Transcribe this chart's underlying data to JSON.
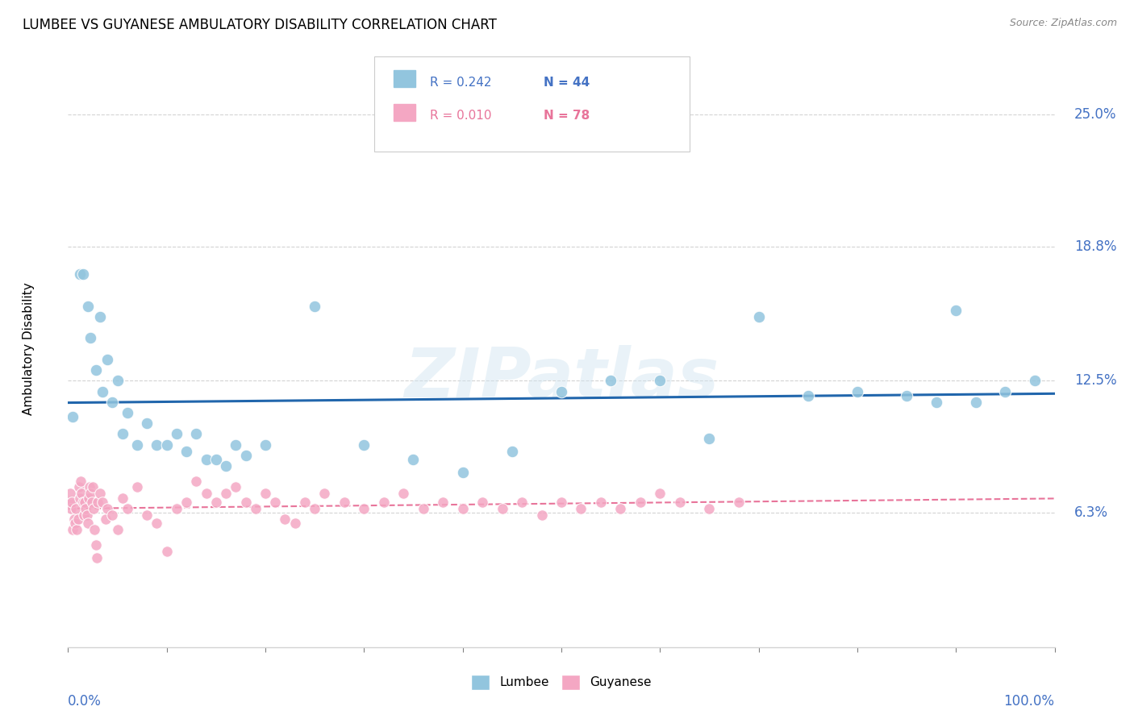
{
  "title": "LUMBEE VS GUYANESE AMBULATORY DISABILITY CORRELATION CHART",
  "source": "Source: ZipAtlas.com",
  "ylabel": "Ambulatory Disability",
  "yticks": [
    0.063,
    0.125,
    0.188,
    0.25
  ],
  "ytick_labels": [
    "6.3%",
    "12.5%",
    "18.8%",
    "25.0%"
  ],
  "lumbee_R": 0.242,
  "lumbee_N": 44,
  "guyanese_R": 0.01,
  "guyanese_N": 78,
  "lumbee_color": "#92c5de",
  "guyanese_color": "#f4a7c3",
  "lumbee_line_color": "#2166ac",
  "guyanese_line_color": "#e8749a",
  "watermark": "ZIPatlas",
  "lumbee_x": [
    0.5,
    1.2,
    1.5,
    2.0,
    2.3,
    2.8,
    3.2,
    3.5,
    4.0,
    4.5,
    5.0,
    5.5,
    6.0,
    7.0,
    8.0,
    9.0,
    10.0,
    11.0,
    12.0,
    13.0,
    14.0,
    15.0,
    16.0,
    17.0,
    18.0,
    20.0,
    25.0,
    30.0,
    35.0,
    40.0,
    45.0,
    50.0,
    55.0,
    60.0,
    65.0,
    70.0,
    75.0,
    80.0,
    85.0,
    88.0,
    90.0,
    92.0,
    95.0,
    98.0
  ],
  "lumbee_y": [
    0.108,
    0.175,
    0.175,
    0.16,
    0.145,
    0.13,
    0.155,
    0.12,
    0.135,
    0.115,
    0.125,
    0.1,
    0.11,
    0.095,
    0.105,
    0.095,
    0.095,
    0.1,
    0.092,
    0.1,
    0.088,
    0.088,
    0.085,
    0.095,
    0.09,
    0.095,
    0.16,
    0.095,
    0.088,
    0.082,
    0.092,
    0.12,
    0.125,
    0.125,
    0.098,
    0.155,
    0.118,
    0.12,
    0.118,
    0.115,
    0.158,
    0.115,
    0.12,
    0.125
  ],
  "guyanese_x": [
    0.1,
    0.2,
    0.3,
    0.4,
    0.5,
    0.6,
    0.7,
    0.8,
    0.9,
    1.0,
    1.1,
    1.2,
    1.3,
    1.4,
    1.5,
    1.6,
    1.7,
    1.8,
    1.9,
    2.0,
    2.1,
    2.2,
    2.3,
    2.4,
    2.5,
    2.6,
    2.7,
    2.8,
    2.9,
    3.0,
    3.2,
    3.5,
    3.8,
    4.0,
    4.5,
    5.0,
    5.5,
    6.0,
    7.0,
    8.0,
    9.0,
    10.0,
    11.0,
    12.0,
    13.0,
    14.0,
    15.0,
    16.0,
    17.0,
    18.0,
    19.0,
    20.0,
    21.0,
    22.0,
    23.0,
    24.0,
    25.0,
    26.0,
    28.0,
    30.0,
    32.0,
    34.0,
    36.0,
    38.0,
    40.0,
    42.0,
    44.0,
    46.0,
    48.0,
    50.0,
    52.0,
    54.0,
    56.0,
    58.0,
    60.0,
    62.0,
    65.0,
    68.0
  ],
  "guyanese_y": [
    0.068,
    0.072,
    0.065,
    0.068,
    0.055,
    0.06,
    0.058,
    0.065,
    0.055,
    0.06,
    0.075,
    0.07,
    0.078,
    0.072,
    0.068,
    0.062,
    0.068,
    0.065,
    0.062,
    0.058,
    0.07,
    0.075,
    0.072,
    0.068,
    0.075,
    0.065,
    0.055,
    0.048,
    0.042,
    0.068,
    0.072,
    0.068,
    0.06,
    0.065,
    0.062,
    0.055,
    0.07,
    0.065,
    0.075,
    0.062,
    0.058,
    0.045,
    0.065,
    0.068,
    0.078,
    0.072,
    0.068,
    0.072,
    0.075,
    0.068,
    0.065,
    0.072,
    0.068,
    0.06,
    0.058,
    0.068,
    0.065,
    0.072,
    0.068,
    0.065,
    0.068,
    0.072,
    0.065,
    0.068,
    0.065,
    0.068,
    0.065,
    0.068,
    0.062,
    0.068,
    0.065,
    0.068,
    0.065,
    0.068,
    0.072,
    0.068,
    0.065,
    0.068
  ]
}
